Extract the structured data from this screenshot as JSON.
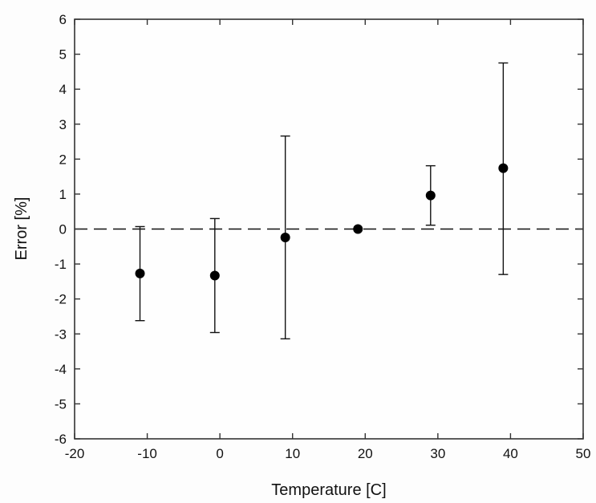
{
  "chart_data": {
    "type": "scatter",
    "title": "",
    "xlabel": "Temperature [C]",
    "ylabel": "Error [%]",
    "xlim": [
      -20,
      50
    ],
    "ylim": [
      -6,
      6
    ],
    "xticks": [
      -20,
      -10,
      0,
      10,
      20,
      30,
      40,
      50
    ],
    "yticks": [
      -6,
      -5,
      -4,
      -3,
      -2,
      -1,
      0,
      1,
      2,
      3,
      4,
      5,
      6
    ],
    "grid": false,
    "legend": null,
    "reference_line": {
      "y": 0,
      "style": "dashed"
    },
    "series": [
      {
        "name": "Error",
        "marker": "filled-circle",
        "points": [
          {
            "x": -11,
            "y": -1.27,
            "err_low": -2.62,
            "err_high": 0.07
          },
          {
            "x": -0.7,
            "y": -1.33,
            "err_low": -2.96,
            "err_high": 0.3
          },
          {
            "x": 9,
            "y": -0.24,
            "err_low": -3.14,
            "err_high": 2.66
          },
          {
            "x": 19,
            "y": 0.0,
            "err_low": 0.0,
            "err_high": 0.0
          },
          {
            "x": 29,
            "y": 0.96,
            "err_low": 0.11,
            "err_high": 1.81
          },
          {
            "x": 39,
            "y": 1.74,
            "err_low": -1.3,
            "err_high": 4.75
          }
        ]
      }
    ]
  }
}
